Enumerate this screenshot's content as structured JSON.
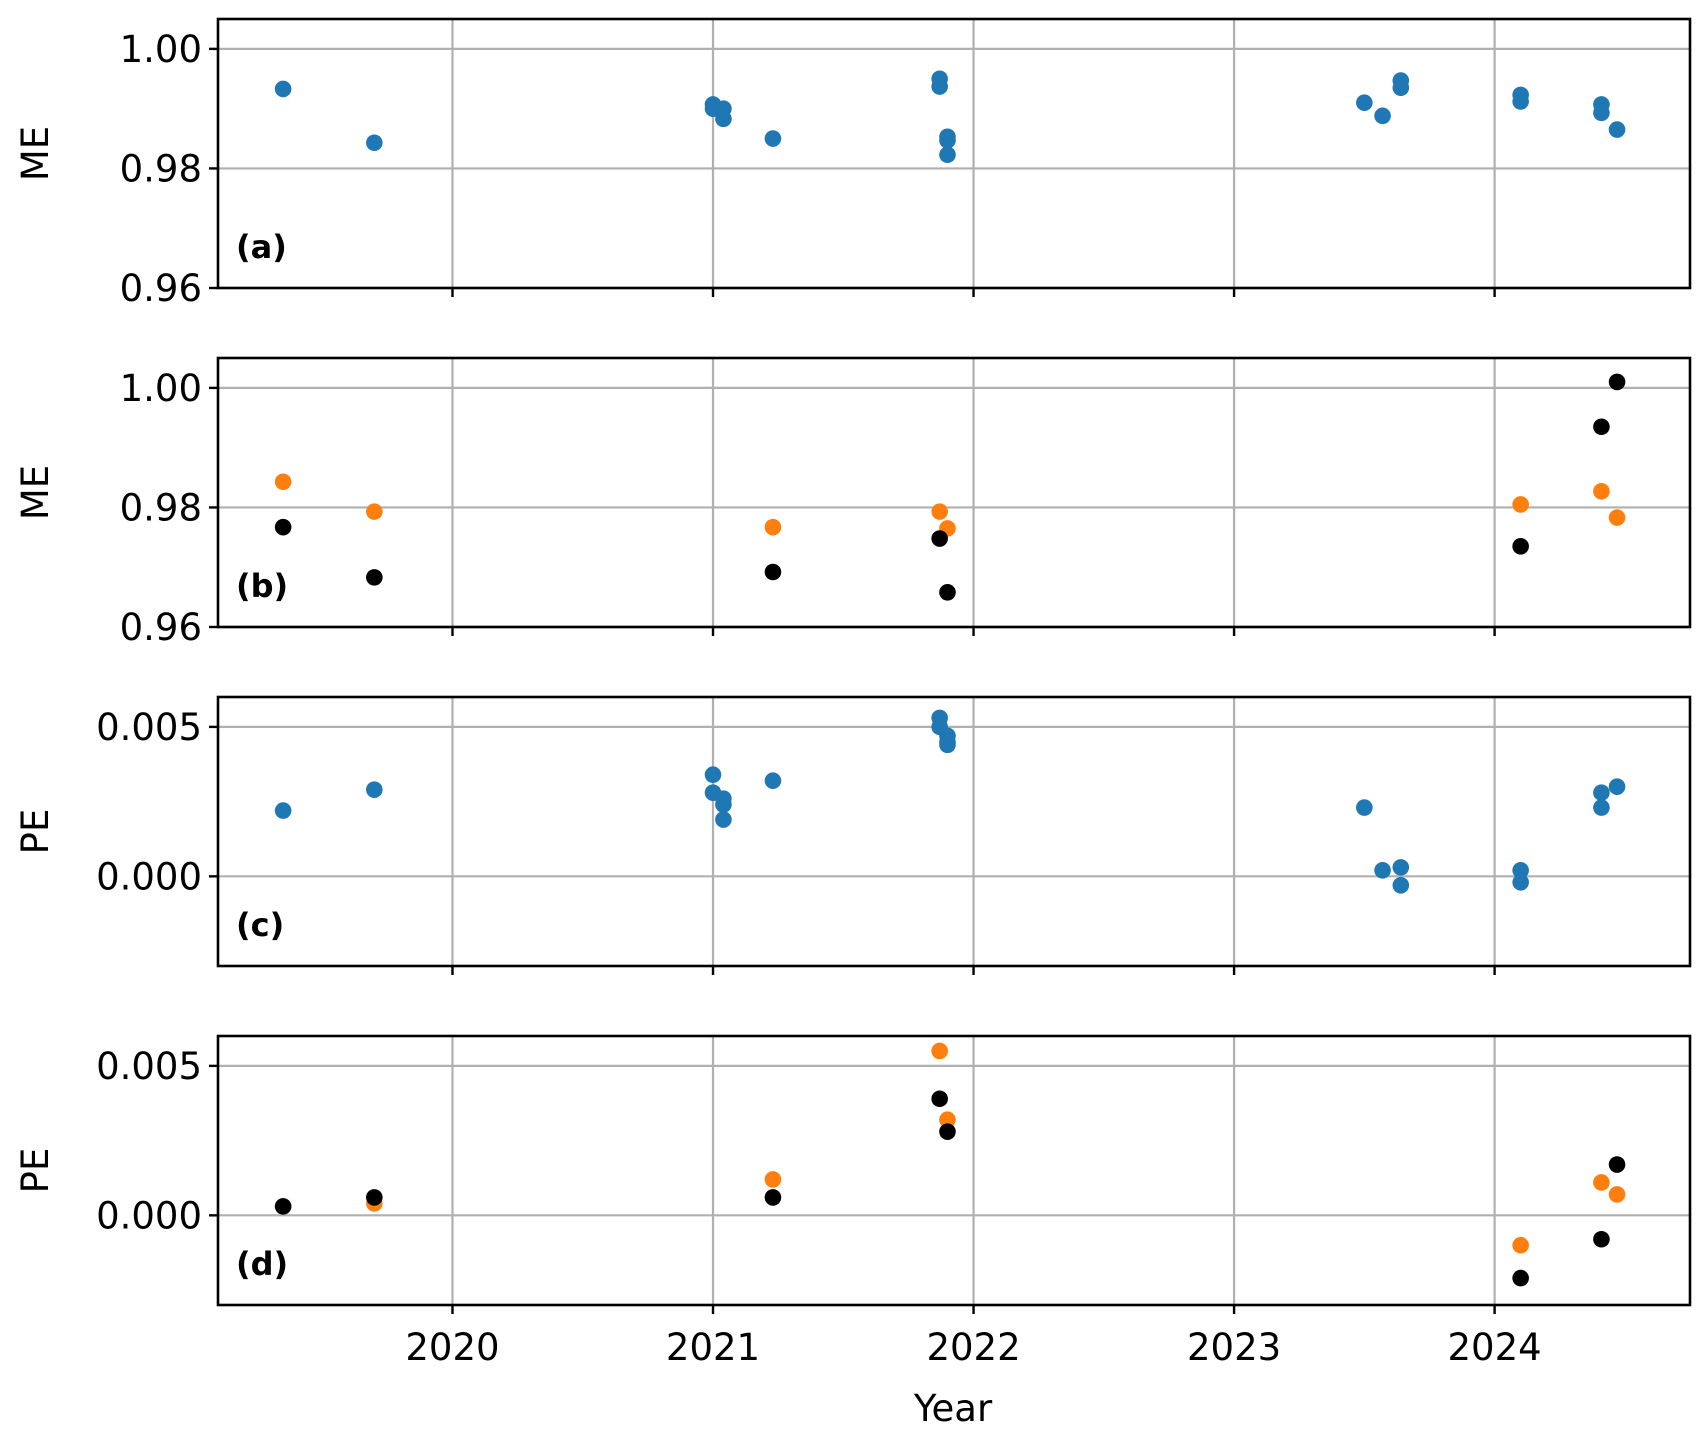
{
  "colors": {
    "blue": "#1f77b4",
    "orange": "#ff7f0e",
    "black": "#000000",
    "grid": "#b0b0b0"
  },
  "chart_data": {
    "type": "scatter",
    "x_axis": {
      "label": "Year",
      "ticks": [
        2020,
        2021,
        2022,
        2023,
        2024
      ],
      "tick_labels": [
        "2020",
        "2021",
        "2022",
        "2023",
        "2024"
      ],
      "xlim": [
        2019.1,
        2024.75
      ]
    },
    "grid": true,
    "panels": [
      {
        "label": "(a)",
        "ylabel": "ME",
        "ylim": [
          0.96,
          1.005
        ],
        "yticks": [
          0.96,
          0.98,
          1.0
        ],
        "ytick_labels": [
          "0.96",
          "0.98",
          "1.00"
        ],
        "series": [
          {
            "color": "blue",
            "points": [
              [
                2019.35,
                0.9933
              ],
              [
                2019.7,
                0.9843
              ],
              [
                2021.0,
                0.9907
              ],
              [
                2021.0,
                0.99
              ],
              [
                2021.04,
                0.99
              ],
              [
                2021.04,
                0.9883
              ],
              [
                2021.23,
                0.985
              ],
              [
                2021.87,
                0.995
              ],
              [
                2021.87,
                0.9937
              ],
              [
                2021.9,
                0.9853
              ],
              [
                2021.9,
                0.9847
              ],
              [
                2021.9,
                0.9823
              ],
              [
                2023.5,
                0.991
              ],
              [
                2023.57,
                0.9888
              ],
              [
                2023.64,
                0.9947
              ],
              [
                2023.64,
                0.9935
              ],
              [
                2024.1,
                0.9923
              ],
              [
                2024.1,
                0.9912
              ],
              [
                2024.41,
                0.9907
              ],
              [
                2024.41,
                0.9893
              ],
              [
                2024.47,
                0.9865
              ]
            ]
          }
        ]
      },
      {
        "label": "(b)",
        "ylabel": "ME",
        "ylim": [
          0.96,
          1.005
        ],
        "yticks": [
          0.96,
          0.98,
          1.0
        ],
        "ytick_labels": [
          "0.96",
          "0.98",
          "1.00"
        ],
        "series": [
          {
            "color": "orange",
            "points": [
              [
                2019.35,
                0.9843
              ],
              [
                2019.7,
                0.9793
              ],
              [
                2021.23,
                0.9767
              ],
              [
                2021.87,
                0.9793
              ],
              [
                2021.9,
                0.9765
              ],
              [
                2024.1,
                0.9805
              ],
              [
                2024.41,
                0.9827
              ],
              [
                2024.47,
                0.9783
              ]
            ]
          },
          {
            "color": "black",
            "points": [
              [
                2019.35,
                0.9767
              ],
              [
                2019.7,
                0.9683
              ],
              [
                2021.23,
                0.9692
              ],
              [
                2021.87,
                0.9748
              ],
              [
                2021.9,
                0.9658
              ],
              [
                2024.1,
                0.9735
              ],
              [
                2024.41,
                0.9935
              ],
              [
                2024.47,
                1.001
              ]
            ]
          }
        ]
      },
      {
        "label": "(c)",
        "ylabel": "PE",
        "ylim": [
          -0.003,
          0.006
        ],
        "yticks": [
          0.0,
          0.005
        ],
        "ytick_labels": [
          "0.000",
          "0.005"
        ],
        "series": [
          {
            "color": "blue",
            "points": [
              [
                2019.35,
                0.0022
              ],
              [
                2019.7,
                0.0029
              ],
              [
                2021.0,
                0.0034
              ],
              [
                2021.0,
                0.0028
              ],
              [
                2021.04,
                0.0026
              ],
              [
                2021.04,
                0.0024
              ],
              [
                2021.04,
                0.0019
              ],
              [
                2021.23,
                0.0032
              ],
              [
                2021.87,
                0.0053
              ],
              [
                2021.87,
                0.005
              ],
              [
                2021.9,
                0.0047
              ],
              [
                2021.9,
                0.0045
              ],
              [
                2021.9,
                0.0044
              ],
              [
                2023.5,
                0.0023
              ],
              [
                2023.57,
                0.0002
              ],
              [
                2023.64,
                0.0003
              ],
              [
                2023.64,
                -0.0003
              ],
              [
                2024.1,
                0.0002
              ],
              [
                2024.1,
                -0.0002
              ],
              [
                2024.41,
                0.0028
              ],
              [
                2024.41,
                0.0023
              ],
              [
                2024.47,
                0.003
              ]
            ]
          }
        ]
      },
      {
        "label": "(d)",
        "ylabel": "PE",
        "ylim": [
          -0.003,
          0.006
        ],
        "yticks": [
          0.0,
          0.005
        ],
        "ytick_labels": [
          "0.000",
          "0.005"
        ],
        "series": [
          {
            "color": "orange",
            "points": [
              [
                2019.35,
                0.0003
              ],
              [
                2019.7,
                0.0004
              ],
              [
                2021.23,
                0.0012
              ],
              [
                2021.87,
                0.0055
              ],
              [
                2021.9,
                0.0032
              ],
              [
                2024.1,
                -0.001
              ],
              [
                2024.41,
                0.0011
              ],
              [
                2024.47,
                0.0007
              ]
            ]
          },
          {
            "color": "black",
            "points": [
              [
                2019.35,
                0.0003
              ],
              [
                2019.7,
                0.0006
              ],
              [
                2021.23,
                0.0006
              ],
              [
                2021.87,
                0.0039
              ],
              [
                2021.9,
                0.0028
              ],
              [
                2024.1,
                -0.0021
              ],
              [
                2024.41,
                -0.0008
              ],
              [
                2024.47,
                0.0017
              ]
            ]
          }
        ]
      }
    ]
  }
}
